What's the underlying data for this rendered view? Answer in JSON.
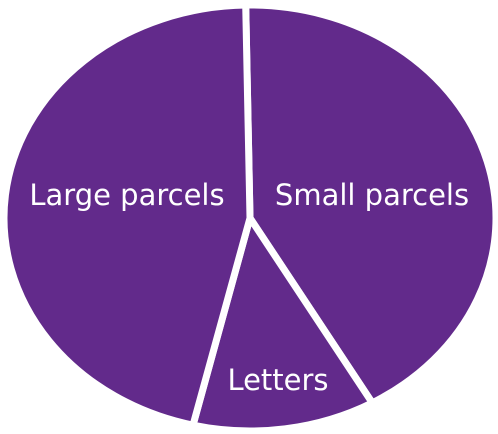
{
  "chart_data": {
    "type": "pie",
    "categories": [
      "Small parcels",
      "Letters",
      "Large parcels"
    ],
    "values": [
      42,
      12,
      46
    ],
    "color": "#622a8b"
  }
}
